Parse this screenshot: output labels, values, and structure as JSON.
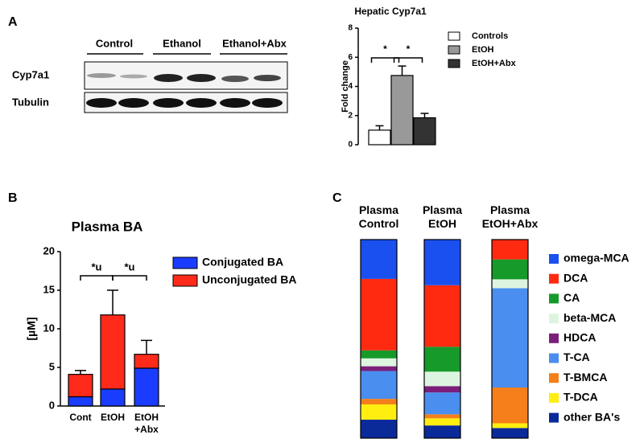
{
  "panel_labels": [
    "A",
    "B",
    "C"
  ],
  "blot": {
    "groups": [
      "Control",
      "Ethanol",
      "Ethanol+Abx"
    ],
    "rows": [
      "Cyp7a1",
      "Tubulin"
    ]
  },
  "chart_data": [
    {
      "type": "bar",
      "title": "Hepatic Cyp7a1",
      "y_label": "Fold change",
      "series": [
        {
          "name": "Controls",
          "color": "#ffffff",
          "values": [
            1.0
          ],
          "errors": [
            0.3
          ]
        },
        {
          "name": "EtOH",
          "color": "#999999",
          "values": [
            4.75
          ],
          "errors": [
            0.65
          ]
        },
        {
          "name": "EtOH+Abx",
          "color": "#333333",
          "values": [
            1.85
          ],
          "errors": [
            0.3
          ]
        }
      ],
      "ylim": [
        0,
        8
      ],
      "yticks": [
        0,
        2,
        4,
        6,
        8
      ],
      "annotations": [
        "*",
        "*"
      ]
    },
    {
      "type": "stacked_bar",
      "title": "Plasma BA",
      "y_label": "[µM]",
      "categories": [
        "Cont",
        "EtOH",
        "EtOH +Abx"
      ],
      "series": [
        {
          "name": "Conjugated BA",
          "color": "#1a3cff",
          "values": [
            1.2,
            2.2,
            4.9
          ]
        },
        {
          "name": "Unconjugated BA",
          "color": "#ff2a1a",
          "values": [
            2.9,
            9.6,
            1.8
          ],
          "errors": [
            0.5,
            3.2,
            1.8
          ]
        }
      ],
      "ylim": [
        0,
        20
      ],
      "yticks": [
        0,
        5,
        10,
        15,
        20
      ],
      "annotations": [
        "*u",
        "*u"
      ]
    },
    {
      "type": "stacked_percent",
      "categories": [
        "Plasma Control",
        "Plasma EtOH",
        "Plasma EtOH+Abx"
      ],
      "series": [
        {
          "name": "omega-MCA",
          "color": "#1a4ff0",
          "values": [
            19.8,
            23,
            0
          ]
        },
        {
          "name": "DCA",
          "color": "#ff2a10",
          "values": [
            36,
            31,
            10
          ]
        },
        {
          "name": "CA",
          "color": "#169a2a",
          "values": [
            4,
            12.5,
            10
          ]
        },
        {
          "name": "beta-MCA",
          "color": "#ddf5e0",
          "values": [
            4,
            7.3,
            4.5
          ]
        },
        {
          "name": "HDCA",
          "color": "#7b1f7b",
          "values": [
            2.4,
            3.2,
            0
          ]
        },
        {
          "name": "T-CA",
          "color": "#4a8ef0",
          "values": [
            14,
            11,
            50
          ]
        },
        {
          "name": "T-BMCA",
          "color": "#f57f1a",
          "values": [
            2.8,
            2,
            18
          ]
        },
        {
          "name": "T-DCA",
          "color": "#ffee10",
          "values": [
            7.7,
            3.6,
            2.4
          ]
        },
        {
          "name": "other BA's",
          "color": "#0a2a9a",
          "values": [
            9.3,
            6.4,
            5.1
          ]
        }
      ],
      "ylim": [
        0,
        100
      ]
    }
  ]
}
